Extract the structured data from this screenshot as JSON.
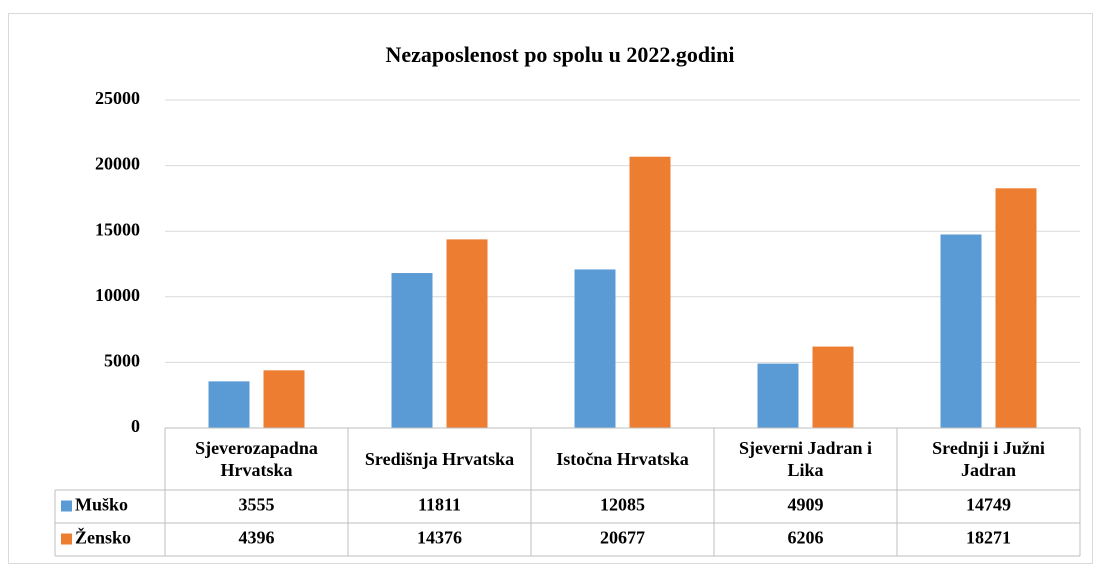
{
  "chart_data": {
    "type": "bar",
    "title": "Nezaposlenost po spolu u 2022.godini",
    "categories": [
      "Sjeverozapadna Hrvatska",
      "Središnja Hrvatska",
      "Istočna Hrvatska",
      "Sjeverni Jadran i Lika",
      "Srednji i Južni Jadran"
    ],
    "series": [
      {
        "name": "Muško",
        "color": "#5b9bd5",
        "values": [
          3555,
          11811,
          12085,
          4909,
          14749
        ]
      },
      {
        "name": "Žensko",
        "color": "#ed7d31",
        "values": [
          4396,
          14376,
          20677,
          6206,
          18271
        ]
      }
    ],
    "ylim": [
      0,
      25000
    ],
    "yticks": [
      0,
      5000,
      10000,
      15000,
      20000,
      25000
    ],
    "grid": true,
    "data_table": true
  }
}
